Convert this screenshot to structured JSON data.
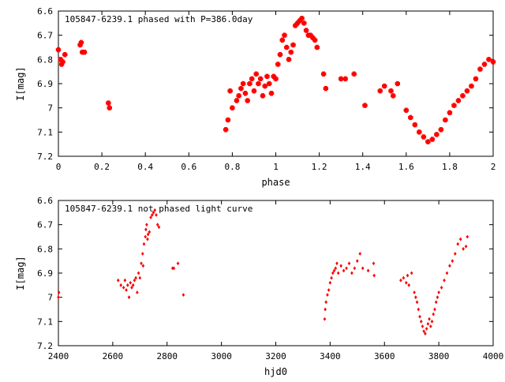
{
  "chart_data": [
    {
      "type": "scatter",
      "title": "105847-6239.1 phased with P=386.0day",
      "xlabel": "phase",
      "ylabel": "I[mag]",
      "xlim": [
        0,
        2
      ],
      "ylim": [
        6.6,
        7.2
      ],
      "y_inverted": true,
      "x_ticks": [
        0,
        0.2,
        0.4,
        0.6,
        0.8,
        1,
        1.2,
        1.4,
        1.6,
        1.8,
        2
      ],
      "y_ticks": [
        6.6,
        6.7,
        6.8,
        6.9,
        7,
        7.1,
        7.2
      ],
      "x_tick_labels": [
        "0",
        "0.2",
        "0.4",
        "0.6",
        "0.8",
        "1",
        "1.2",
        "1.4",
        "1.6",
        "1.8",
        "2"
      ],
      "y_tick_labels": [
        "6.6",
        "6.7",
        "6.8",
        "6.9",
        "7",
        "7.1",
        "7.2"
      ],
      "grid": false,
      "marker_color": "#ff0000",
      "series": [
        {
          "x": [
            0.0,
            0.01,
            0.015,
            0.02,
            0.03,
            0.1,
            0.105,
            0.11,
            0.12,
            0.23,
            0.235,
            0.77,
            0.78,
            0.79,
            0.8,
            0.82,
            0.83,
            0.84,
            0.85,
            0.86,
            0.87,
            0.88,
            0.89,
            0.9,
            0.91,
            0.92,
            0.93,
            0.94,
            0.95,
            0.96,
            0.97,
            0.98,
            0.99,
            1.0,
            1.01,
            1.02,
            1.03,
            1.04,
            1.05,
            1.06,
            1.07,
            1.08,
            1.09,
            1.1,
            1.11,
            1.12,
            1.13,
            1.14,
            1.15,
            1.16,
            1.17,
            1.18,
            1.19,
            1.22,
            1.23,
            1.3,
            1.32,
            1.36,
            1.41,
            1.48,
            1.5,
            1.53,
            1.54,
            1.56,
            1.6,
            1.62,
            1.64,
            1.66,
            1.68,
            1.7,
            1.72,
            1.74,
            1.76,
            1.78,
            1.8,
            1.82,
            1.84,
            1.86,
            1.88,
            1.9,
            1.92,
            1.94,
            1.96,
            1.98,
            2.0
          ],
          "y": [
            6.76,
            6.8,
            6.82,
            6.81,
            6.78,
            6.74,
            6.73,
            6.77,
            6.77,
            6.98,
            7.0,
            7.09,
            7.05,
            6.93,
            7.0,
            6.97,
            6.95,
            6.92,
            6.9,
            6.94,
            6.97,
            6.9,
            6.88,
            6.93,
            6.86,
            6.9,
            6.88,
            6.95,
            6.91,
            6.87,
            6.9,
            6.94,
            6.87,
            6.88,
            6.82,
            6.78,
            6.72,
            6.7,
            6.75,
            6.8,
            6.77,
            6.74,
            6.66,
            6.65,
            6.64,
            6.63,
            6.65,
            6.68,
            6.7,
            6.7,
            6.71,
            6.72,
            6.75,
            6.86,
            6.92,
            6.88,
            6.88,
            6.86,
            6.99,
            6.93,
            6.91,
            6.93,
            6.95,
            6.9,
            7.01,
            7.04,
            7.07,
            7.1,
            7.12,
            7.14,
            7.13,
            7.11,
            7.09,
            7.05,
            7.02,
            6.99,
            6.97,
            6.95,
            6.93,
            6.91,
            6.88,
            6.84,
            6.82,
            6.8,
            6.81
          ]
        }
      ]
    },
    {
      "type": "scatter",
      "title": "105847-6239.1 not phased light curve",
      "xlabel": "hjd0",
      "ylabel": "I[mag]",
      "xlim": [
        2400,
        4000
      ],
      "ylim": [
        6.6,
        7.2
      ],
      "y_inverted": true,
      "x_ticks": [
        2400,
        2600,
        2800,
        3000,
        3200,
        3400,
        3600,
        3800,
        4000
      ],
      "y_ticks": [
        6.6,
        6.7,
        6.8,
        6.9,
        7,
        7.1,
        7.2
      ],
      "x_tick_labels": [
        "2400",
        "2600",
        "2800",
        "3000",
        "3200",
        "3400",
        "3600",
        "3800",
        "4000"
      ],
      "y_tick_labels": [
        "6.6",
        "6.7",
        "6.8",
        "6.9",
        "7",
        "7.1",
        "7.2"
      ],
      "grid": false,
      "marker_color": "#ff0000",
      "series": [
        {
          "x": [
            2400,
            2402,
            2620,
            2630,
            2640,
            2645,
            2650,
            2655,
            2660,
            2665,
            2670,
            2675,
            2680,
            2685,
            2690,
            2695,
            2700,
            2705,
            2710,
            2712,
            2715,
            2720,
            2722,
            2725,
            2728,
            2730,
            2735,
            2740,
            2745,
            2750,
            2755,
            2760,
            2765,
            2770,
            2820,
            2825,
            2840,
            2860,
            3380,
            3382,
            3385,
            3390,
            3395,
            3400,
            3405,
            3410,
            3415,
            3420,
            3425,
            3430,
            3440,
            3450,
            3460,
            3470,
            3480,
            3490,
            3500,
            3510,
            3520,
            3540,
            3560,
            3562,
            3660,
            3670,
            3680,
            3685,
            3690,
            3700,
            3710,
            3715,
            3720,
            3725,
            3730,
            3735,
            3740,
            3745,
            3750,
            3755,
            3760,
            3765,
            3770,
            3775,
            3780,
            3785,
            3790,
            3795,
            3800,
            3810,
            3820,
            3830,
            3840,
            3850,
            3860,
            3870,
            3880,
            3890,
            3900,
            3905
          ],
          "y": [
            7.0,
            6.98,
            6.93,
            6.95,
            6.96,
            6.93,
            6.97,
            6.95,
            7.0,
            6.94,
            6.96,
            6.95,
            6.93,
            6.92,
            6.98,
            6.9,
            6.92,
            6.86,
            6.82,
            6.87,
            6.78,
            6.75,
            6.72,
            6.7,
            6.76,
            6.74,
            6.73,
            6.67,
            6.66,
            6.65,
            6.64,
            6.66,
            6.7,
            6.71,
            6.88,
            6.88,
            6.86,
            6.99,
            7.09,
            7.05,
            7.02,
            6.99,
            6.97,
            6.94,
            6.92,
            6.9,
            6.89,
            6.88,
            6.86,
            6.9,
            6.87,
            6.89,
            6.88,
            6.86,
            6.9,
            6.88,
            6.85,
            6.82,
            6.88,
            6.89,
            6.86,
            6.91,
            6.93,
            6.92,
            6.94,
            6.91,
            6.95,
            6.9,
            6.98,
            7.0,
            7.02,
            7.05,
            7.08,
            7.1,
            7.12,
            7.14,
            7.15,
            7.13,
            7.11,
            7.09,
            7.12,
            7.1,
            7.07,
            7.05,
            7.02,
            7.0,
            6.98,
            6.96,
            6.93,
            6.9,
            6.87,
            6.85,
            6.82,
            6.78,
            6.76,
            6.8,
            6.79,
            6.75
          ],
          "note_marker": "small"
        }
      ]
    }
  ]
}
